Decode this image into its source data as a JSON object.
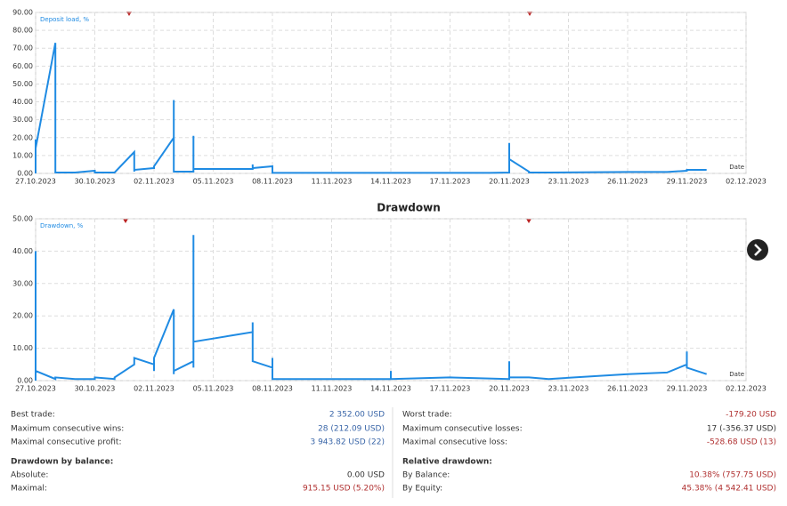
{
  "chart_data": [
    {
      "type": "line",
      "series": [
        {
          "name": "Deposit load, %",
          "color": "#1f8be3",
          "values": [
            0,
            19,
            10,
            14,
            73,
            1,
            0.5,
            0.5,
            1.5,
            0.5,
            0.5,
            12,
            1,
            2,
            3,
            2.5,
            4,
            20,
            41,
            2,
            30,
            1,
            1,
            21,
            2.5,
            2.5,
            2.5,
            2.5,
            5,
            3,
            4,
            0.3,
            0.3,
            0.3,
            0.3,
            0.5,
            17,
            0.5,
            8,
            1,
            0.5,
            0.5,
            0.8,
            0.8,
            1.5,
            2,
            2
          ]
        }
      ],
      "x": [
        "27.10.2023",
        "27.10.2023",
        "27.10.2023",
        "27.10.2023",
        "28.10.2023",
        "28.10.2023",
        "28.10.2023",
        "29.10.2023",
        "30.10.2023",
        "30.10.2023",
        "31.10.2023",
        "01.11.2023",
        "01.11.2023",
        "01.11.2023",
        "02.11.2023",
        "02.11.2023",
        "02.11.2023",
        "03.11.2023",
        "03.11.2023",
        "03.11.2023",
        "03.11.2023",
        "03.11.2023",
        "04.11.2023",
        "04.11.2023",
        "04.11.2023",
        "05.11.2023",
        "06.11.2023",
        "07.11.2023",
        "07.11.2023",
        "07.11.2023",
        "08.11.2023",
        "08.11.2023",
        "12.11.2023",
        "16.11.2023",
        "19.11.2023",
        "20.11.2023",
        "20.11.2023",
        "20.11.2023",
        "20.11.2023",
        "21.11.2023",
        "21.11.2023",
        "22.11.2023",
        "26.11.2023",
        "28.11.2023",
        "29.11.2023",
        "29.11.2023",
        "30.11.2023"
      ],
      "xlabel": "Date",
      "xlim": [
        "27.10.2023",
        "02.12.2023"
      ],
      "xticks": [
        "27.10.2023",
        "30.10.2023",
        "02.11.2023",
        "05.11.2023",
        "08.11.2023",
        "11.11.2023",
        "14.11.2023",
        "17.11.2023",
        "20.11.2023",
        "23.11.2023",
        "26.11.2023",
        "29.11.2023",
        "02.12.2023"
      ],
      "ylim": [
        0,
        90
      ],
      "yticks": [
        {
          "value": 0,
          "label": "0.00"
        },
        {
          "value": 10,
          "label": "10.00"
        },
        {
          "value": 20,
          "label": "20.00"
        },
        {
          "value": 30,
          "label": "30.00"
        },
        {
          "value": 40,
          "label": "40.00"
        },
        {
          "value": 50,
          "label": "50.00"
        },
        {
          "value": 60,
          "label": "60.00"
        },
        {
          "value": 70,
          "label": "70.00"
        },
        {
          "value": 80,
          "label": "80.00"
        },
        {
          "value": 90,
          "label": "90.00"
        }
      ],
      "grid": true
    },
    {
      "type": "line",
      "title": "Drawdown",
      "series": [
        {
          "name": "Drawdown, %",
          "color": "#1f8be3",
          "values": [
            0,
            16,
            0,
            3,
            40,
            3,
            0.5,
            1,
            0.5,
            0.5,
            1,
            0.5,
            1,
            5,
            7,
            6,
            7,
            5,
            6,
            3,
            7,
            22,
            2,
            14,
            3,
            6,
            10,
            45,
            4,
            12,
            13,
            14,
            15,
            6,
            18,
            8,
            6,
            4,
            7,
            0.5,
            0.5,
            0.5,
            3,
            0.5,
            1,
            0.5,
            6,
            1,
            2,
            1,
            1,
            0.5,
            2,
            2.5,
            5,
            9,
            7,
            9,
            4,
            2
          ]
        }
      ],
      "x": [
        "27.10.2023",
        "27.10.2023",
        "27.10.2023",
        "27.10.2023",
        "27.10.2023",
        "27.10.2023",
        "28.10.2023",
        "28.10.2023",
        "29.10.2023",
        "30.10.2023",
        "30.10.2023",
        "31.10.2023",
        "31.10.2023",
        "01.11.2023",
        "01.11.2023",
        "01.11.2023",
        "01.11.2023",
        "02.11.2023",
        "02.11.2023",
        "02.11.2023",
        "02.11.2023",
        "03.11.2023",
        "03.11.2023",
        "03.11.2023",
        "03.11.2023",
        "04.11.2023",
        "04.11.2023",
        "04.11.2023",
        "04.11.2023",
        "04.11.2023",
        "05.11.2023",
        "06.11.2023",
        "07.11.2023",
        "07.11.2023",
        "07.11.2023",
        "07.11.2023",
        "07.11.2023",
        "08.11.2023",
        "08.11.2023",
        "08.11.2023",
        "09.11.2023",
        "14.11.2023",
        "14.11.2023",
        "14.11.2023",
        "17.11.2023",
        "20.11.2023",
        "20.11.2023",
        "20.11.2023",
        "20.11.2023",
        "20.11.2023",
        "21.11.2023",
        "22.11.2023",
        "26.11.2023",
        "28.11.2023",
        "29.11.2023",
        "29.11.2023",
        "29.11.2023",
        "29.11.2023",
        "29.11.2023",
        "30.11.2023"
      ],
      "xlabel": "Date",
      "xlim": [
        "27.10.2023",
        "02.12.2023"
      ],
      "xticks": [
        "27.10.2023",
        "30.10.2023",
        "02.11.2023",
        "05.11.2023",
        "08.11.2023",
        "11.11.2023",
        "14.11.2023",
        "17.11.2023",
        "20.11.2023",
        "23.11.2023",
        "26.11.2023",
        "29.11.2023",
        "02.12.2023"
      ],
      "ylim": [
        0,
        50
      ],
      "yticks": [
        {
          "value": 0,
          "label": "0.00"
        },
        {
          "value": 10,
          "label": "10.00"
        },
        {
          "value": 20,
          "label": "20.00"
        },
        {
          "value": 30,
          "label": "30.00"
        },
        {
          "value": 40,
          "label": "40.00"
        },
        {
          "value": 50,
          "label": "50.00"
        }
      ],
      "grid": true
    }
  ],
  "stats": {
    "left": [
      {
        "label": "Best trade:",
        "value": "2 352.00 USD"
      },
      {
        "label": "Maximum consecutive wins:",
        "value": "28 (212.09 USD)"
      },
      {
        "label": "Maximal consecutive profit:",
        "value": "3 943.82 USD (22)"
      },
      {
        "heading": "Drawdown by balance:"
      },
      {
        "label": "Absolute:",
        "value": "0.00 USD"
      },
      {
        "label": "Maximal:",
        "value": "915.15 USD (5.20%)"
      }
    ],
    "right": [
      {
        "label": "Worst trade:",
        "value": "-179.20 USD"
      },
      {
        "label": "Maximum consecutive losses:",
        "value": "17 (-356.37 USD)"
      },
      {
        "label": "Maximal consecutive loss:",
        "value": "-528.68 USD (13)"
      },
      {
        "heading": "Relative drawdown:"
      },
      {
        "label": "By Balance:",
        "value": "10.38% (757.75 USD)"
      },
      {
        "label": "By Equity:",
        "value": "45.38% (4 542.41 USD)"
      }
    ]
  }
}
